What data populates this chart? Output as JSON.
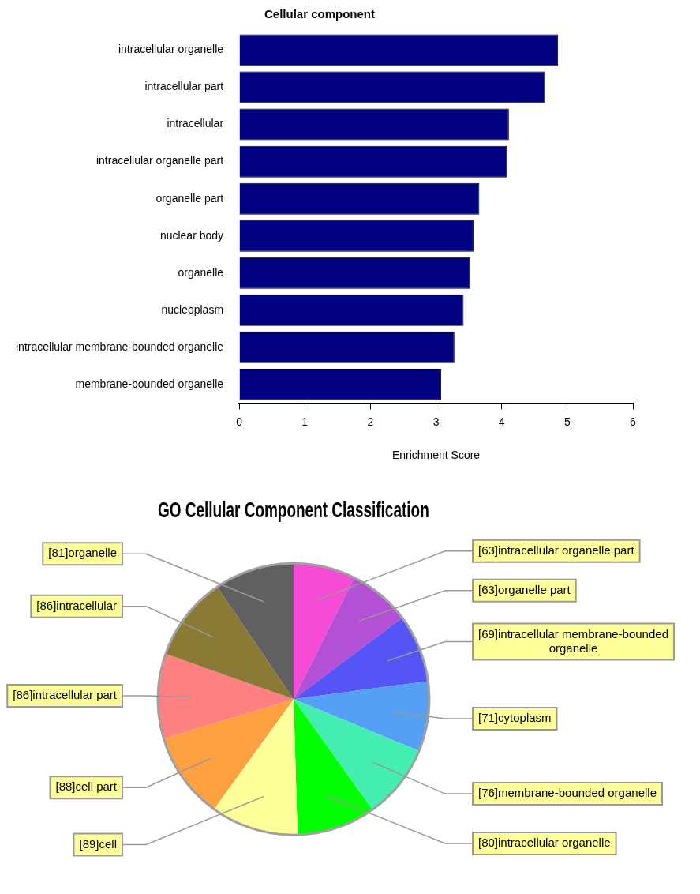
{
  "chart_data": [
    {
      "type": "bar",
      "orientation": "horizontal",
      "title": "Cellular component",
      "xlabel": "Enrichment Score",
      "categories": [
        "intracellular organelle",
        "intracellular part",
        "intracellular",
        "intracellular organelle part",
        "organelle part",
        "nuclear body",
        "organelle",
        "nucleoplasm",
        "intracellular membrane-bounded organelle",
        "membrane-bounded organelle"
      ],
      "values": [
        4.86,
        4.66,
        4.11,
        4.08,
        3.66,
        3.57,
        3.52,
        3.42,
        3.28,
        3.08
      ],
      "color": "#000080",
      "xlim": [
        0,
        6
      ],
      "xticks": [
        0,
        1,
        2,
        3,
        4,
        5,
        6
      ],
      "grid": false,
      "legend": false
    },
    {
      "type": "pie",
      "title": "GO Cellular Component Classification",
      "categories": [
        "[63]intracellular organelle part",
        "[63]organelle part",
        "[69]intracellular membrane-bounded organelle",
        "[71]cytoplasm",
        "[76]membrane-bounded organelle",
        "[80]intracellular organelle",
        "[89]cell",
        "[88]cell part",
        "[86]intracellular part",
        "[86]intracellular",
        "[81]organelle"
      ],
      "values": [
        63,
        63,
        69,
        71,
        76,
        80,
        89,
        88,
        86,
        86,
        81
      ],
      "colors": [
        "#f54bd6",
        "#b450d6",
        "#5555f5",
        "#55a0f5",
        "#44eeb0",
        "#00ff00",
        "#ffff99",
        "#ffa040",
        "#ff8080",
        "#8b7a35",
        "#606060"
      ],
      "legend": false
    }
  ]
}
